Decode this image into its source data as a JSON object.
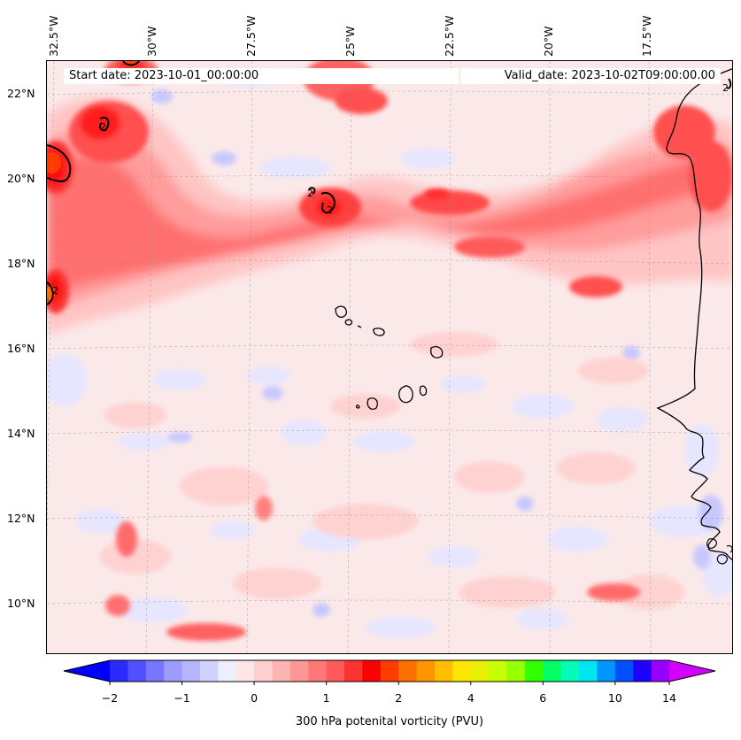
{
  "header": {
    "start_date": "Start date: 2023-10-01_00:00:00",
    "valid_date": "Valid_date: 2023-10-02T09:00:00.00"
  },
  "map": {
    "lon_labels": [
      "32.5°W",
      "30°W",
      "27.5°W",
      "25°W",
      "22.5°W",
      "20°W",
      "17.5°W"
    ],
    "lat_labels": [
      "22°N",
      "20°N",
      "18°N",
      "16°N",
      "14°N",
      "12°N",
      "10°N"
    ],
    "contour_label": "2",
    "gridlines": true
  },
  "colorbar": {
    "tick_labels": [
      "−2",
      "−1",
      "0",
      "1",
      "2",
      "4",
      "6",
      "10",
      "14"
    ],
    "title": "300 hPa potenital vorticity (PVU)",
    "colors": [
      "#0000ff",
      "#2a2aff",
      "#5050ff",
      "#7676ff",
      "#9c9cff",
      "#b4b4ff",
      "#d2d2ff",
      "#eeeeff",
      "#ffe6e6",
      "#ffd0d0",
      "#ffb4b4",
      "#ff9696",
      "#ff7878",
      "#ff5a5a",
      "#ff3232",
      "#ff0000",
      "#ff3c00",
      "#ff6e00",
      "#ff9600",
      "#ffbe00",
      "#ffe600",
      "#e6f000",
      "#c8ff00",
      "#96ff00",
      "#32ff00",
      "#00ff64",
      "#00ffb4",
      "#00e6f0",
      "#0096ff",
      "#0050ff",
      "#1e00ff",
      "#9600ff",
      "#d200ff"
    ]
  },
  "colors": {
    "coastline": "#000000",
    "contour": "#000000",
    "background_pv": "#fbeaea"
  }
}
